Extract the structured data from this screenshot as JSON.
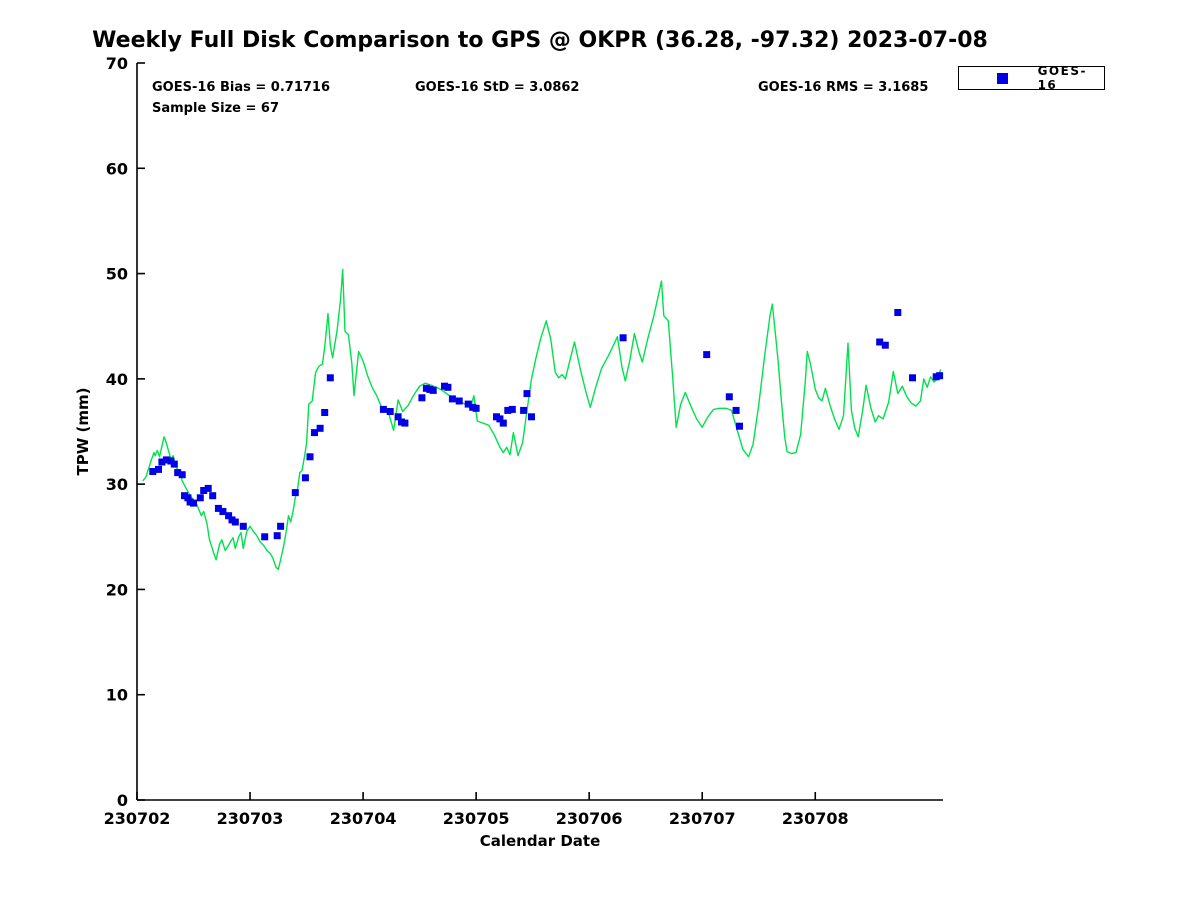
{
  "chart_data": {
    "type": "line+scatter",
    "title": "Weekly Full Disk Comparison to GPS @ OKPR (36.28, -97.32) 2023-07-08",
    "xlabel": "Calendar Date",
    "ylabel": "TPW (mm)",
    "x_unit": "days since 230702",
    "xlim": [
      0,
      7.13
    ],
    "ylim": [
      0,
      70
    ],
    "yticks": [
      0,
      10,
      20,
      30,
      40,
      50,
      60,
      70
    ],
    "xtick_labels": [
      "230702",
      "230703",
      "230704",
      "230705",
      "230706",
      "230707",
      "230708"
    ],
    "grid": false,
    "legend_position": "top-right-outside",
    "annotations": {
      "bias": "GOES-16 Bias = 0.71716",
      "std": "GOES-16 StD = 3.0862",
      "rms": "GOES-16 RMS = 3.1685",
      "sample": "Sample Size = 67"
    },
    "series": [
      {
        "name": "GPS",
        "type": "line",
        "color": "#00e14c",
        "width": 1.4,
        "points": [
          [
            0.05,
            30.3
          ],
          [
            0.08,
            30.7
          ],
          [
            0.1,
            31.4
          ],
          [
            0.13,
            32.4
          ],
          [
            0.15,
            33.0
          ],
          [
            0.16,
            32.7
          ],
          [
            0.18,
            33.2
          ],
          [
            0.2,
            32.6
          ],
          [
            0.22,
            33.6
          ],
          [
            0.24,
            34.5
          ],
          [
            0.26,
            33.9
          ],
          [
            0.28,
            33.1
          ],
          [
            0.3,
            32.4
          ],
          [
            0.32,
            32.7
          ],
          [
            0.34,
            31.7
          ],
          [
            0.36,
            31.4
          ],
          [
            0.38,
            31.2
          ],
          [
            0.4,
            30.3
          ],
          [
            0.42,
            29.9
          ],
          [
            0.44,
            29.5
          ],
          [
            0.46,
            29.1
          ],
          [
            0.49,
            28.6
          ],
          [
            0.52,
            28.3
          ],
          [
            0.55,
            27.5
          ],
          [
            0.57,
            27.0
          ],
          [
            0.59,
            27.4
          ],
          [
            0.62,
            26.2
          ],
          [
            0.64,
            24.8
          ],
          [
            0.66,
            24.1
          ],
          [
            0.68,
            23.4
          ],
          [
            0.7,
            22.8
          ],
          [
            0.73,
            24.3
          ],
          [
            0.75,
            24.7
          ],
          [
            0.78,
            23.7
          ],
          [
            0.81,
            24.2
          ],
          [
            0.83,
            24.6
          ],
          [
            0.85,
            24.9
          ],
          [
            0.87,
            23.9
          ],
          [
            0.9,
            25.0
          ],
          [
            0.92,
            25.4
          ],
          [
            0.94,
            23.9
          ],
          [
            0.97,
            25.5
          ],
          [
            1.0,
            26.0
          ],
          [
            1.03,
            25.5
          ],
          [
            1.06,
            25.1
          ],
          [
            1.09,
            24.5
          ],
          [
            1.12,
            24.2
          ],
          [
            1.15,
            23.7
          ],
          [
            1.18,
            23.4
          ],
          [
            1.2,
            23.0
          ],
          [
            1.23,
            22.1
          ],
          [
            1.25,
            21.9
          ],
          [
            1.27,
            22.8
          ],
          [
            1.3,
            24.3
          ],
          [
            1.32,
            25.5
          ],
          [
            1.34,
            27.0
          ],
          [
            1.36,
            26.4
          ],
          [
            1.38,
            27.4
          ],
          [
            1.4,
            28.7
          ],
          [
            1.42,
            29.5
          ],
          [
            1.44,
            31.1
          ],
          [
            1.46,
            31.3
          ],
          [
            1.48,
            32.5
          ],
          [
            1.5,
            33.9
          ],
          [
            1.52,
            37.6
          ],
          [
            1.55,
            37.9
          ],
          [
            1.58,
            40.6
          ],
          [
            1.61,
            41.2
          ],
          [
            1.64,
            41.4
          ],
          [
            1.66,
            43.0
          ],
          [
            1.69,
            46.2
          ],
          [
            1.71,
            43.2
          ],
          [
            1.73,
            42.0
          ],
          [
            1.77,
            44.6
          ],
          [
            1.8,
            47.5
          ],
          [
            1.82,
            50.4
          ],
          [
            1.84,
            44.5
          ],
          [
            1.87,
            44.2
          ],
          [
            1.9,
            41.5
          ],
          [
            1.92,
            38.4
          ],
          [
            1.96,
            42.6
          ],
          [
            2.0,
            41.7
          ],
          [
            2.04,
            40.3
          ],
          [
            2.08,
            39.2
          ],
          [
            2.12,
            38.4
          ],
          [
            2.16,
            37.4
          ],
          [
            2.19,
            37.1
          ],
          [
            2.23,
            36.6
          ],
          [
            2.27,
            35.1
          ],
          [
            2.31,
            38.0
          ],
          [
            2.35,
            36.9
          ],
          [
            2.4,
            37.5
          ],
          [
            2.45,
            38.5
          ],
          [
            2.5,
            39.3
          ],
          [
            2.55,
            39.6
          ],
          [
            2.6,
            39.4
          ],
          [
            2.65,
            39.2
          ],
          [
            2.7,
            38.9
          ],
          [
            2.75,
            38.5
          ],
          [
            2.8,
            38.2
          ],
          [
            2.85,
            37.9
          ],
          [
            2.9,
            37.6
          ],
          [
            2.95,
            37.3
          ],
          [
            2.98,
            38.4
          ],
          [
            3.01,
            36.0
          ],
          [
            3.06,
            35.8
          ],
          [
            3.11,
            35.6
          ],
          [
            3.16,
            34.7
          ],
          [
            3.21,
            33.5
          ],
          [
            3.24,
            33.0
          ],
          [
            3.27,
            33.5
          ],
          [
            3.3,
            32.8
          ],
          [
            3.33,
            34.9
          ],
          [
            3.37,
            32.7
          ],
          [
            3.41,
            33.9
          ],
          [
            3.45,
            37.0
          ],
          [
            3.49,
            40.0
          ],
          [
            3.53,
            42.0
          ],
          [
            3.57,
            43.8
          ],
          [
            3.62,
            45.5
          ],
          [
            3.66,
            43.8
          ],
          [
            3.7,
            40.6
          ],
          [
            3.73,
            40.1
          ],
          [
            3.76,
            40.4
          ],
          [
            3.79,
            40.0
          ],
          [
            3.83,
            41.8
          ],
          [
            3.87,
            43.5
          ],
          [
            3.92,
            41.0
          ],
          [
            3.97,
            38.8
          ],
          [
            4.01,
            37.3
          ],
          [
            4.06,
            39.3
          ],
          [
            4.11,
            41.0
          ],
          [
            4.17,
            42.2
          ],
          [
            4.22,
            43.3
          ],
          [
            4.25,
            44.0
          ],
          [
            4.29,
            41.1
          ],
          [
            4.32,
            39.8
          ],
          [
            4.36,
            41.8
          ],
          [
            4.4,
            44.3
          ],
          [
            4.44,
            42.6
          ],
          [
            4.47,
            41.6
          ],
          [
            4.52,
            43.9
          ],
          [
            4.57,
            45.9
          ],
          [
            4.61,
            47.8
          ],
          [
            4.64,
            49.3
          ],
          [
            4.66,
            46.0
          ],
          [
            4.7,
            45.5
          ],
          [
            4.74,
            40.0
          ],
          [
            4.77,
            35.4
          ],
          [
            4.81,
            37.6
          ],
          [
            4.85,
            38.7
          ],
          [
            4.9,
            37.4
          ],
          [
            4.95,
            36.2
          ],
          [
            5.0,
            35.4
          ],
          [
            5.05,
            36.4
          ],
          [
            5.1,
            37.1
          ],
          [
            5.15,
            37.2
          ],
          [
            5.21,
            37.2
          ],
          [
            5.26,
            37.0
          ],
          [
            5.31,
            35.1
          ],
          [
            5.36,
            33.3
          ],
          [
            5.41,
            32.6
          ],
          [
            5.45,
            33.8
          ],
          [
            5.5,
            37.5
          ],
          [
            5.55,
            42.0
          ],
          [
            5.6,
            46.0
          ],
          [
            5.62,
            47.1
          ],
          [
            5.65,
            44.0
          ],
          [
            5.67,
            41.8
          ],
          [
            5.7,
            38.0
          ],
          [
            5.73,
            34.5
          ],
          [
            5.75,
            33.1
          ],
          [
            5.79,
            32.9
          ],
          [
            5.83,
            33.0
          ],
          [
            5.87,
            34.7
          ],
          [
            5.91,
            39.5
          ],
          [
            5.93,
            42.6
          ],
          [
            5.96,
            41.3
          ],
          [
            6.0,
            39.0
          ],
          [
            6.03,
            38.2
          ],
          [
            6.06,
            37.9
          ],
          [
            6.09,
            39.1
          ],
          [
            6.13,
            37.5
          ],
          [
            6.17,
            36.2
          ],
          [
            6.21,
            35.2
          ],
          [
            6.25,
            36.5
          ],
          [
            6.29,
            43.4
          ],
          [
            6.32,
            37.0
          ],
          [
            6.35,
            35.3
          ],
          [
            6.38,
            34.5
          ],
          [
            6.42,
            37.0
          ],
          [
            6.45,
            39.4
          ],
          [
            6.49,
            37.3
          ],
          [
            6.53,
            35.9
          ],
          [
            6.56,
            36.5
          ],
          [
            6.6,
            36.2
          ],
          [
            6.65,
            37.8
          ],
          [
            6.69,
            40.7
          ],
          [
            6.73,
            38.6
          ],
          [
            6.77,
            39.3
          ],
          [
            6.81,
            38.3
          ],
          [
            6.85,
            37.7
          ],
          [
            6.89,
            37.4
          ],
          [
            6.93,
            37.9
          ],
          [
            6.96,
            40.0
          ],
          [
            6.99,
            39.2
          ],
          [
            7.02,
            40.2
          ],
          [
            7.05,
            39.7
          ],
          [
            7.08,
            40.0
          ],
          [
            7.11,
            40.9
          ]
        ]
      },
      {
        "name": "GOES-16",
        "type": "scatter",
        "marker": "square",
        "color": "#0000e6",
        "size": 7,
        "points": [
          [
            0.14,
            31.2
          ],
          [
            0.19,
            31.4
          ],
          [
            0.22,
            32.1
          ],
          [
            0.26,
            32.3
          ],
          [
            0.3,
            32.2
          ],
          [
            0.33,
            31.9
          ],
          [
            0.36,
            31.1
          ],
          [
            0.4,
            30.9
          ],
          [
            0.42,
            28.9
          ],
          [
            0.45,
            28.7
          ],
          [
            0.47,
            28.3
          ],
          [
            0.5,
            28.2
          ],
          [
            0.56,
            28.7
          ],
          [
            0.59,
            29.4
          ],
          [
            0.63,
            29.6
          ],
          [
            0.67,
            28.9
          ],
          [
            0.72,
            27.7
          ],
          [
            0.76,
            27.4
          ],
          [
            0.81,
            27.0
          ],
          [
            0.84,
            26.6
          ],
          [
            0.87,
            26.4
          ],
          [
            0.94,
            26.0
          ],
          [
            1.13,
            25.0
          ],
          [
            1.24,
            25.1
          ],
          [
            1.27,
            26.0
          ],
          [
            1.4,
            29.2
          ],
          [
            1.49,
            30.6
          ],
          [
            1.53,
            32.6
          ],
          [
            1.57,
            34.9
          ],
          [
            1.62,
            35.3
          ],
          [
            1.66,
            36.8
          ],
          [
            1.71,
            40.1
          ],
          [
            2.18,
            37.1
          ],
          [
            2.24,
            36.9
          ],
          [
            2.31,
            36.4
          ],
          [
            2.34,
            35.9
          ],
          [
            2.37,
            35.8
          ],
          [
            2.52,
            38.2
          ],
          [
            2.56,
            39.1
          ],
          [
            2.59,
            39.0
          ],
          [
            2.62,
            38.9
          ],
          [
            2.72,
            39.3
          ],
          [
            2.75,
            39.2
          ],
          [
            2.79,
            38.1
          ],
          [
            2.85,
            37.9
          ],
          [
            2.93,
            37.6
          ],
          [
            2.97,
            37.3
          ],
          [
            3.0,
            37.2
          ],
          [
            3.18,
            36.4
          ],
          [
            3.21,
            36.2
          ],
          [
            3.24,
            35.8
          ],
          [
            3.28,
            37.0
          ],
          [
            3.32,
            37.1
          ],
          [
            3.42,
            37.0
          ],
          [
            3.45,
            38.6
          ],
          [
            3.49,
            36.4
          ],
          [
            4.3,
            43.9
          ],
          [
            5.04,
            42.3
          ],
          [
            5.24,
            38.3
          ],
          [
            5.3,
            37.0
          ],
          [
            5.33,
            35.5
          ],
          [
            6.57,
            43.5
          ],
          [
            6.62,
            43.2
          ],
          [
            6.73,
            46.3
          ],
          [
            6.86,
            40.1
          ],
          [
            7.07,
            40.2
          ],
          [
            7.1,
            40.3
          ]
        ]
      }
    ]
  }
}
